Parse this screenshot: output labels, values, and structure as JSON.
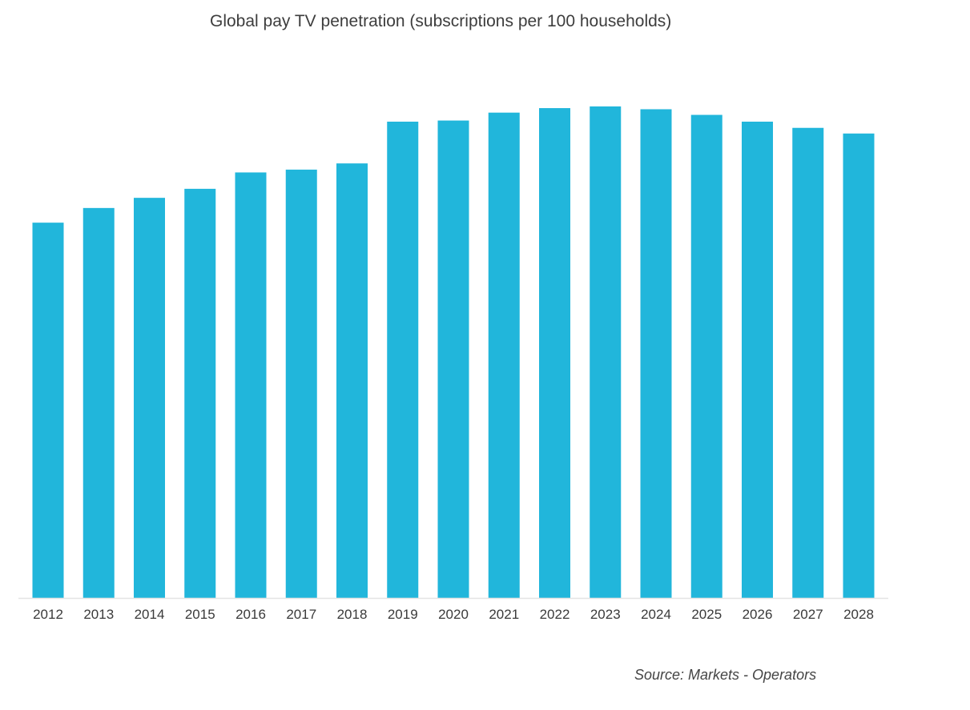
{
  "chart_data": {
    "type": "bar",
    "title": "Global pay TV penetration (subscriptions per 100 households)",
    "xlabel": "",
    "ylabel": "",
    "categories": [
      "2012",
      "2013",
      "2014",
      "2015",
      "2016",
      "2017",
      "2018",
      "2019",
      "2020",
      "2021",
      "2022",
      "2023",
      "2024",
      "2025",
      "2026",
      "2027",
      "2028"
    ],
    "values": [
      66.5,
      69.1,
      70.9,
      72.5,
      75.4,
      75.9,
      77.0,
      84.4,
      84.6,
      86.0,
      86.8,
      87.1,
      86.6,
      85.6,
      84.4,
      83.3,
      82.3
    ],
    "ylim": [
      0,
      100
    ],
    "grid": false,
    "bar_color": "#21b6db",
    "axis_color": "#e3e3e3"
  },
  "source": "Source:  Markets - Operators"
}
